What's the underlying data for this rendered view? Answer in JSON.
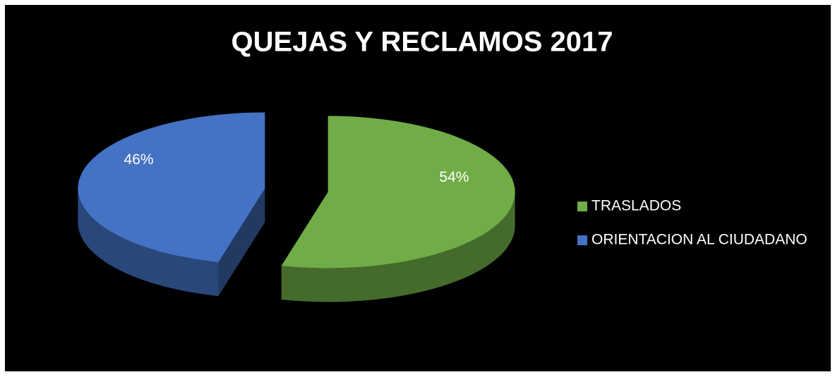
{
  "chart_data": {
    "type": "pie",
    "title": "QUEJAS Y RECLAMOS 2017",
    "categories": [
      "TRASLADOS",
      "ORIENTACION AL CIUDADANO"
    ],
    "values": [
      54,
      46
    ],
    "value_labels": [
      "54%",
      "46%"
    ],
    "colors": [
      "#70ad47",
      "#4472c4"
    ],
    "legend": "right"
  }
}
